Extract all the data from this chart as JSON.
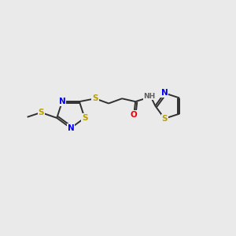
{
  "bg_color": "#eaeaea",
  "atom_colors": {
    "S": "#b8a000",
    "N": "#0000ee",
    "O": "#ee0000",
    "C": "#303030",
    "H": "#606060"
  },
  "bond_color": "#303030",
  "bond_lw": 1.4
}
